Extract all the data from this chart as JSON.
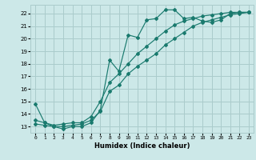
{
  "title": "",
  "xlabel": "Humidex (Indice chaleur)",
  "bg_color": "#cce8e8",
  "grid_color": "#aacccc",
  "line_color": "#1a7a6e",
  "xlim": [
    -0.5,
    23.5
  ],
  "ylim": [
    12.5,
    22.7
  ],
  "xticks": [
    0,
    1,
    2,
    3,
    4,
    5,
    6,
    7,
    8,
    9,
    10,
    11,
    12,
    13,
    14,
    15,
    16,
    17,
    18,
    19,
    20,
    21,
    22,
    23
  ],
  "yticks": [
    13,
    14,
    15,
    16,
    17,
    18,
    19,
    20,
    21,
    22
  ],
  "series1_x": [
    0,
    1,
    2,
    3,
    4,
    5,
    6,
    7,
    8,
    9,
    10,
    11,
    12,
    13,
    14,
    15,
    16,
    17,
    18,
    19,
    20,
    21,
    22,
    23
  ],
  "series1_y": [
    14.8,
    13.3,
    13.0,
    12.8,
    13.0,
    13.0,
    13.3,
    14.3,
    18.3,
    17.4,
    20.3,
    20.1,
    21.5,
    21.6,
    22.3,
    22.3,
    21.6,
    21.7,
    21.4,
    21.3,
    21.5,
    22.0,
    22.1,
    22.1
  ],
  "series2_x": [
    0,
    1,
    2,
    3,
    4,
    5,
    6,
    7,
    8,
    9,
    10,
    11,
    12,
    13,
    14,
    15,
    16,
    17,
    18,
    19,
    20,
    21,
    22,
    23
  ],
  "series2_y": [
    13.2,
    13.1,
    13.0,
    13.0,
    13.1,
    13.2,
    13.5,
    14.2,
    15.8,
    16.3,
    17.2,
    17.8,
    18.3,
    18.8,
    19.5,
    20.0,
    20.5,
    21.0,
    21.3,
    21.5,
    21.7,
    21.9,
    22.0,
    22.1
  ],
  "series3_x": [
    0,
    1,
    2,
    3,
    4,
    5,
    6,
    7,
    8,
    9,
    10,
    11,
    12,
    13,
    14,
    15,
    16,
    17,
    18,
    19,
    20,
    21,
    22,
    23
  ],
  "series3_y": [
    13.5,
    13.3,
    13.1,
    13.2,
    13.3,
    13.3,
    13.8,
    15.0,
    16.5,
    17.2,
    18.0,
    18.8,
    19.4,
    20.0,
    20.6,
    21.1,
    21.4,
    21.6,
    21.8,
    21.9,
    22.0,
    22.1,
    22.1,
    22.1
  ]
}
